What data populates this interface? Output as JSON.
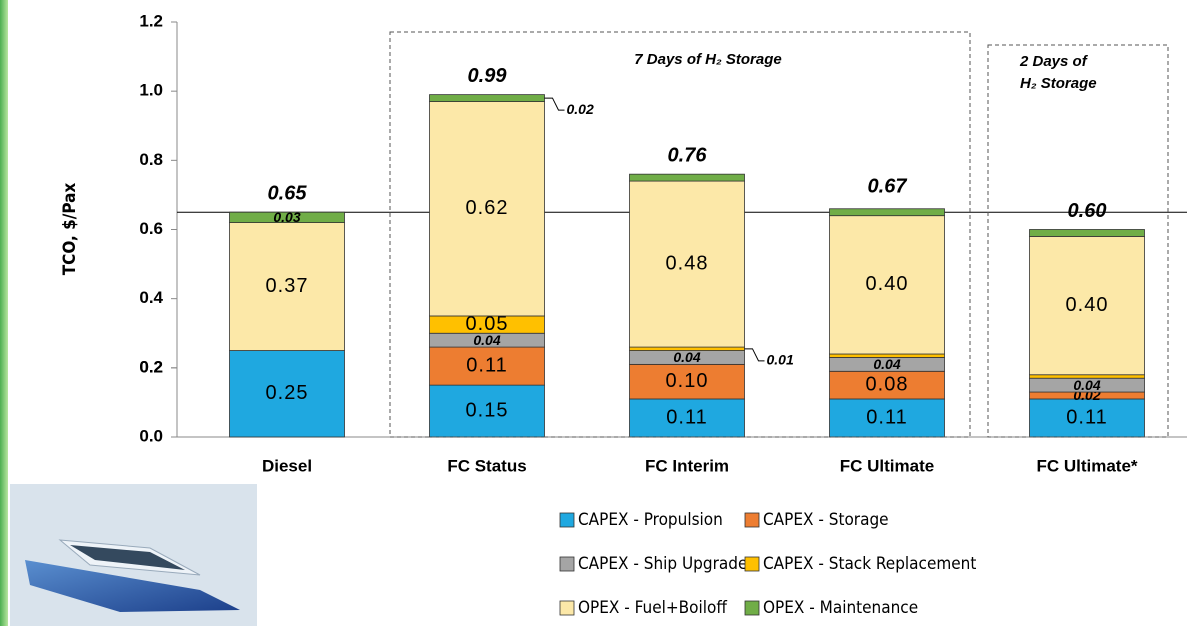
{
  "chart_data": {
    "type": "stacked_bar",
    "ylabel": "TCO, $/Pax",
    "categories": [
      "Diesel",
      "FC Status",
      "FC Interim",
      "FC Ultimate",
      "FC Ultimate*"
    ],
    "series": [
      {
        "name": "CAPEX - Propulsion",
        "color": "#1fa8e0",
        "values": [
          0.25,
          0.15,
          0.11,
          0.11,
          0.11
        ],
        "value_labels": [
          "0.25",
          "0.15",
          "0.11",
          "0.11",
          "0.11"
        ]
      },
      {
        "name": "CAPEX - Storage",
        "color": "#ed7d31",
        "values": [
          0,
          0.11,
          0.1,
          0.08,
          0.02
        ],
        "value_labels": [
          null,
          "0.11",
          "0.10",
          "0.08",
          "0.02"
        ]
      },
      {
        "name": "CAPEX - Ship Upgrade",
        "color": "#a5a5a5",
        "values": [
          0,
          0.04,
          0.04,
          0.04,
          0.04
        ],
        "value_labels": [
          null,
          "0.04",
          "0.04",
          "0.04",
          "0.04"
        ]
      },
      {
        "name": "CAPEX - Stack Replacement",
        "color": "#ffc000",
        "values": [
          0,
          0.05,
          0.01,
          0.01,
          0.01
        ],
        "value_labels": [
          null,
          "0.05",
          "0.01",
          null,
          null
        ]
      },
      {
        "name": "OPEX - Fuel+Boiloff",
        "color": "#fce8a8",
        "values": [
          0.37,
          0.62,
          0.48,
          0.4,
          0.4
        ],
        "value_labels": [
          "0.37",
          "0.62",
          "0.48",
          "0.40",
          "0.40"
        ]
      },
      {
        "name": "OPEX - Maintenance",
        "color": "#70ad47",
        "values": [
          0.03,
          0.02,
          0.02,
          0.02,
          0.02
        ],
        "value_labels": [
          "0.03",
          "0.02",
          null,
          null,
          null
        ]
      }
    ],
    "totals": [
      0.65,
      0.99,
      0.76,
      0.67,
      0.6
    ],
    "total_labels": [
      "0.65",
      "0.99",
      "0.76",
      "0.67",
      "0.60"
    ],
    "reference_line": 0.65,
    "annotations": [
      "7 Days of H₂ Storage",
      "2 Days of",
      "H₂ Storage"
    ],
    "ylim": [
      0,
      1.2
    ],
    "yticks": [
      {
        "value": 0,
        "label": "0.0"
      },
      0.2,
      0.4,
      0.6,
      0.8,
      {
        "value": 1,
        "label": "1.0"
      },
      0.2,
      {
        "value": 1.2,
        "label": "1.2"
      }
    ]
  }
}
